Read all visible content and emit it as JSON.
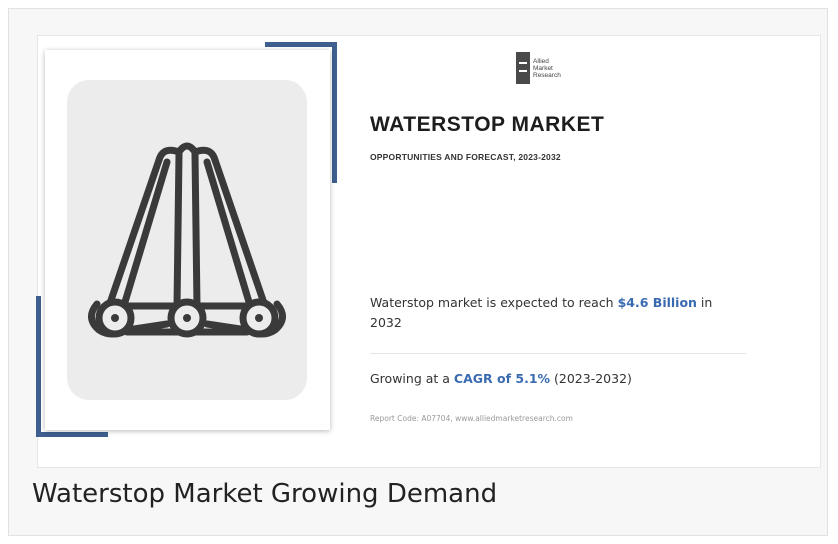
{
  "infographic": {
    "logo": {
      "icon": "allied-market-research-logo",
      "lines": [
        "Allied",
        "Market",
        "Research"
      ]
    },
    "title": "WATERSTOP MARKET",
    "subtitle": "OPPORTUNITIES AND FORECAST, 2023-2032",
    "stat1": {
      "prefix": "Waterstop market is expected to reach ",
      "highlight": "$4.6 Billion",
      "suffix": " in 2032"
    },
    "stat2": {
      "prefix": "Growing at a ",
      "highlight": "CAGR of 5.1%",
      "suffix": " (2023-2032)"
    },
    "report_code": "Report Code: A07704, www.alliedmarketresearch.com",
    "illustration_icon": "waterstop-profile-icon",
    "accent_color": "#3e5f8f",
    "highlight_color": "#3a6bb0"
  },
  "caption": "Waterstop Market Growing Demand"
}
